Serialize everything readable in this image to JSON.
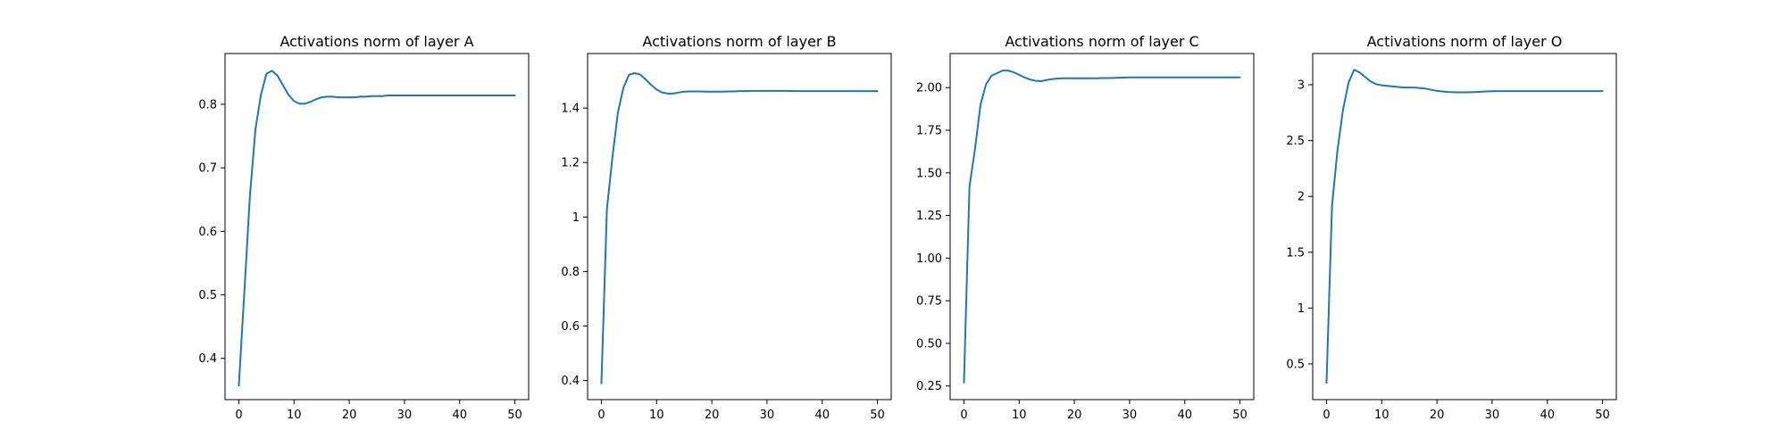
{
  "chart_data": [
    {
      "type": "line",
      "title": "Activations norm of layer A",
      "xlabel": "",
      "ylabel": "",
      "xlim": [
        -2.5,
        52.5
      ],
      "ylim": [
        0.335,
        0.88
      ],
      "xticks": [
        0,
        10,
        20,
        30,
        40,
        50
      ],
      "yticks": [
        0.4,
        0.5,
        0.6,
        0.7,
        0.8
      ],
      "grid": false,
      "series": [
        {
          "color": "#1f77b4",
          "x": [
            0,
            1,
            2,
            3,
            4,
            5,
            6,
            7,
            8,
            9,
            10,
            11,
            12,
            13,
            14,
            15,
            16,
            17,
            18,
            19,
            20,
            21,
            22,
            23,
            24,
            25,
            26,
            27,
            28,
            29,
            30,
            31,
            32,
            33,
            34,
            35,
            36,
            37,
            38,
            39,
            40,
            41,
            42,
            43,
            44,
            45,
            46,
            47,
            48,
            49,
            50
          ],
          "y": [
            0.357,
            0.505,
            0.655,
            0.76,
            0.815,
            0.848,
            0.853,
            0.845,
            0.83,
            0.815,
            0.805,
            0.801,
            0.801,
            0.804,
            0.808,
            0.811,
            0.812,
            0.812,
            0.811,
            0.811,
            0.811,
            0.811,
            0.812,
            0.812,
            0.813,
            0.813,
            0.813,
            0.814,
            0.814,
            0.814,
            0.814,
            0.814,
            0.814,
            0.814,
            0.814,
            0.814,
            0.814,
            0.814,
            0.814,
            0.814,
            0.814,
            0.814,
            0.814,
            0.814,
            0.814,
            0.814,
            0.814,
            0.814,
            0.814,
            0.814,
            0.814
          ]
        }
      ]
    },
    {
      "type": "line",
      "title": "Activations norm of layer B",
      "xlabel": "",
      "ylabel": "",
      "xlim": [
        -2.5,
        52.5
      ],
      "ylim": [
        0.33,
        1.6
      ],
      "xticks": [
        0,
        10,
        20,
        30,
        40,
        50
      ],
      "yticks": [
        0.4,
        0.6,
        0.8,
        1.0,
        1.2,
        1.4
      ],
      "grid": false,
      "series": [
        {
          "color": "#1f77b4",
          "x": [
            0,
            1,
            2,
            3,
            4,
            5,
            6,
            7,
            8,
            9,
            10,
            11,
            12,
            13,
            14,
            15,
            16,
            17,
            18,
            19,
            20,
            21,
            22,
            23,
            24,
            25,
            26,
            27,
            28,
            29,
            30,
            31,
            32,
            33,
            34,
            35,
            36,
            37,
            38,
            39,
            40,
            41,
            42,
            43,
            44,
            45,
            46,
            47,
            48,
            49,
            50
          ],
          "y": [
            0.39,
            1.03,
            1.22,
            1.385,
            1.475,
            1.522,
            1.528,
            1.523,
            1.505,
            1.485,
            1.468,
            1.457,
            1.453,
            1.453,
            1.457,
            1.46,
            1.461,
            1.461,
            1.461,
            1.46,
            1.46,
            1.46,
            1.46,
            1.461,
            1.461,
            1.462,
            1.462,
            1.463,
            1.463,
            1.463,
            1.463,
            1.463,
            1.463,
            1.463,
            1.463,
            1.462,
            1.462,
            1.462,
            1.462,
            1.462,
            1.462,
            1.462,
            1.462,
            1.462,
            1.462,
            1.462,
            1.462,
            1.462,
            1.462,
            1.462,
            1.462
          ]
        }
      ]
    },
    {
      "type": "line",
      "title": "Activations norm of layer C",
      "xlabel": "",
      "ylabel": "",
      "xlim": [
        -2.5,
        52.5
      ],
      "ylim": [
        0.17,
        2.2
      ],
      "xticks": [
        0,
        10,
        20,
        30,
        40,
        50
      ],
      "yticks": [
        0.25,
        0.5,
        0.75,
        1.0,
        1.25,
        1.5,
        1.75,
        2.0
      ],
      "ytick_labels": [
        "0.25",
        "0.50",
        "0.75",
        "1.00",
        "1.25",
        "1.50",
        "1.75",
        "2.00"
      ],
      "grid": false,
      "series": [
        {
          "color": "#1f77b4",
          "x": [
            0,
            1,
            2,
            3,
            4,
            5,
            6,
            7,
            8,
            9,
            10,
            11,
            12,
            13,
            14,
            15,
            16,
            17,
            18,
            19,
            20,
            21,
            22,
            23,
            24,
            25,
            26,
            27,
            28,
            29,
            30,
            31,
            32,
            33,
            34,
            35,
            36,
            37,
            38,
            39,
            40,
            41,
            42,
            43,
            44,
            45,
            46,
            47,
            48,
            49,
            50
          ],
          "y": [
            0.27,
            1.42,
            1.64,
            1.9,
            2.02,
            2.07,
            2.085,
            2.1,
            2.1,
            2.09,
            2.075,
            2.06,
            2.047,
            2.04,
            2.038,
            2.045,
            2.05,
            2.053,
            2.055,
            2.055,
            2.055,
            2.055,
            2.055,
            2.055,
            2.055,
            2.056,
            2.056,
            2.057,
            2.058,
            2.059,
            2.06,
            2.06,
            2.06,
            2.06,
            2.06,
            2.06,
            2.06,
            2.06,
            2.06,
            2.06,
            2.06,
            2.06,
            2.06,
            2.06,
            2.06,
            2.06,
            2.06,
            2.06,
            2.06,
            2.06,
            2.06
          ]
        }
      ]
    },
    {
      "type": "line",
      "title": "Activations norm of layer O",
      "xlabel": "",
      "ylabel": "",
      "xlim": [
        -2.5,
        52.5
      ],
      "ylim": [
        0.18,
        3.28
      ],
      "xticks": [
        0,
        10,
        20,
        30,
        40,
        50
      ],
      "yticks": [
        0.5,
        1.0,
        1.5,
        2.0,
        2.5,
        3.0
      ],
      "grid": false,
      "series": [
        {
          "color": "#1f77b4",
          "x": [
            0,
            1,
            2,
            3,
            4,
            5,
            6,
            7,
            8,
            9,
            10,
            11,
            12,
            13,
            14,
            15,
            16,
            17,
            18,
            19,
            20,
            21,
            22,
            23,
            24,
            25,
            26,
            27,
            28,
            29,
            30,
            31,
            32,
            33,
            34,
            35,
            36,
            37,
            38,
            39,
            40,
            41,
            42,
            43,
            44,
            45,
            46,
            47,
            48,
            49,
            50
          ],
          "y": [
            0.33,
            1.92,
            2.42,
            2.78,
            3.02,
            3.135,
            3.11,
            3.07,
            3.03,
            3.005,
            2.995,
            2.99,
            2.985,
            2.98,
            2.975,
            2.975,
            2.975,
            2.97,
            2.965,
            2.955,
            2.945,
            2.94,
            2.935,
            2.933,
            2.932,
            2.932,
            2.933,
            2.935,
            2.937,
            2.94,
            2.942,
            2.943,
            2.943,
            2.943,
            2.943,
            2.943,
            2.943,
            2.943,
            2.943,
            2.943,
            2.943,
            2.943,
            2.943,
            2.943,
            2.943,
            2.943,
            2.943,
            2.943,
            2.943,
            2.943,
            2.943
          ]
        }
      ]
    }
  ]
}
